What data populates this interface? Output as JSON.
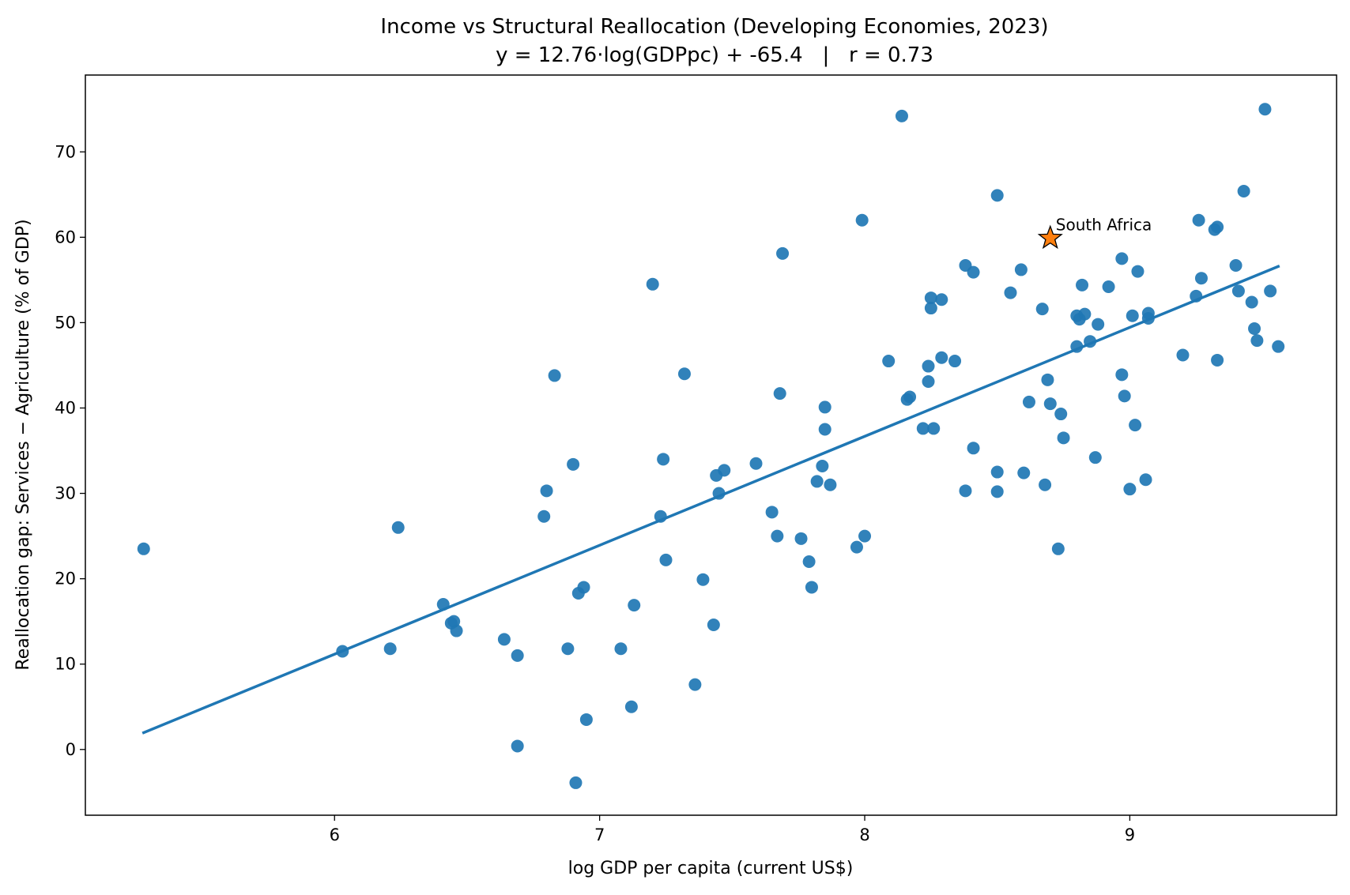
{
  "chart_data": {
    "type": "scatter",
    "title": "Income vs Structural Reallocation (Developing Economies, 2023)",
    "subtitle": "y = 12.76·log(GDPpc) + -65.4   |   r = 0.73",
    "xlabel": "log GDP per capita (current US$)",
    "ylabel": "Reallocation gap: Services − Agriculture (% of GDP)",
    "xlim": [
      5.06,
      9.78
    ],
    "ylim": [
      -7.7,
      79.0
    ],
    "xticks": [
      "6",
      "7",
      "8",
      "9"
    ],
    "yticks": [
      "0",
      "10",
      "20",
      "30",
      "40",
      "50",
      "60",
      "70"
    ],
    "grid": false,
    "legend": "none",
    "colors": {
      "points": "#1f77b4",
      "highlight": "#ff7f0e",
      "fit": "#1f77b4"
    },
    "fit_line": {
      "slope": 12.76,
      "intercept": -65.4,
      "x_range": [
        5.28,
        9.56
      ]
    },
    "highlight": {
      "label": "South Africa",
      "x": 8.7,
      "y": 59.9
    },
    "points": [
      [
        5.28,
        23.5
      ],
      [
        6.03,
        11.5
      ],
      [
        6.21,
        11.8
      ],
      [
        6.24,
        26.0
      ],
      [
        6.41,
        17.0
      ],
      [
        6.44,
        14.8
      ],
      [
        6.45,
        15.0
      ],
      [
        6.46,
        13.9
      ],
      [
        6.64,
        12.9
      ],
      [
        6.69,
        11.0
      ],
      [
        6.69,
        0.4
      ],
      [
        6.79,
        27.3
      ],
      [
        6.8,
        30.3
      ],
      [
        6.83,
        43.8
      ],
      [
        6.88,
        11.8
      ],
      [
        6.9,
        33.4
      ],
      [
        6.91,
        -3.9
      ],
      [
        6.92,
        18.3
      ],
      [
        6.94,
        19.0
      ],
      [
        6.95,
        3.5
      ],
      [
        7.08,
        11.8
      ],
      [
        7.12,
        5.0
      ],
      [
        7.13,
        16.9
      ],
      [
        7.2,
        54.5
      ],
      [
        7.23,
        27.3
      ],
      [
        7.24,
        34.0
      ],
      [
        7.25,
        22.2
      ],
      [
        7.32,
        44.0
      ],
      [
        7.36,
        7.6
      ],
      [
        7.39,
        19.9
      ],
      [
        7.43,
        14.6
      ],
      [
        7.44,
        32.1
      ],
      [
        7.45,
        30.0
      ],
      [
        7.47,
        32.7
      ],
      [
        7.59,
        33.5
      ],
      [
        7.65,
        27.8
      ],
      [
        7.67,
        25.0
      ],
      [
        7.68,
        41.7
      ],
      [
        7.69,
        58.1
      ],
      [
        7.76,
        24.7
      ],
      [
        7.79,
        22.0
      ],
      [
        7.8,
        19.0
      ],
      [
        7.82,
        31.4
      ],
      [
        7.84,
        33.2
      ],
      [
        7.85,
        40.1
      ],
      [
        7.85,
        37.5
      ],
      [
        7.87,
        31.0
      ],
      [
        7.97,
        23.7
      ],
      [
        7.99,
        62.0
      ],
      [
        8.0,
        25.0
      ],
      [
        8.09,
        45.5
      ],
      [
        8.14,
        74.2
      ],
      [
        8.16,
        41.0
      ],
      [
        8.17,
        41.3
      ],
      [
        8.22,
        37.6
      ],
      [
        8.24,
        44.9
      ],
      [
        8.24,
        43.1
      ],
      [
        8.25,
        51.7
      ],
      [
        8.25,
        52.9
      ],
      [
        8.26,
        37.6
      ],
      [
        8.29,
        52.7
      ],
      [
        8.29,
        45.9
      ],
      [
        8.34,
        45.5
      ],
      [
        8.38,
        30.3
      ],
      [
        8.38,
        56.7
      ],
      [
        8.41,
        55.9
      ],
      [
        8.41,
        35.3
      ],
      [
        8.5,
        64.9
      ],
      [
        8.5,
        32.5
      ],
      [
        8.5,
        30.2
      ],
      [
        8.55,
        53.5
      ],
      [
        8.59,
        56.2
      ],
      [
        8.6,
        32.4
      ],
      [
        8.62,
        40.7
      ],
      [
        8.67,
        51.6
      ],
      [
        8.68,
        31.0
      ],
      [
        8.69,
        43.3
      ],
      [
        8.7,
        40.5
      ],
      [
        8.73,
        23.5
      ],
      [
        8.74,
        39.3
      ],
      [
        8.75,
        36.5
      ],
      [
        8.8,
        47.2
      ],
      [
        8.8,
        50.8
      ],
      [
        8.81,
        50.4
      ],
      [
        8.82,
        54.4
      ],
      [
        8.83,
        51.0
      ],
      [
        8.85,
        47.8
      ],
      [
        8.87,
        34.2
      ],
      [
        8.88,
        49.8
      ],
      [
        8.92,
        54.2
      ],
      [
        8.97,
        57.5
      ],
      [
        8.97,
        43.9
      ],
      [
        8.98,
        41.4
      ],
      [
        9.0,
        30.5
      ],
      [
        9.01,
        50.8
      ],
      [
        9.02,
        38.0
      ],
      [
        9.03,
        56.0
      ],
      [
        9.06,
        31.6
      ],
      [
        9.07,
        50.5
      ],
      [
        9.07,
        51.1
      ],
      [
        9.2,
        46.2
      ],
      [
        9.25,
        53.1
      ],
      [
        9.26,
        62.0
      ],
      [
        9.27,
        55.2
      ],
      [
        9.32,
        60.9
      ],
      [
        9.33,
        61.2
      ],
      [
        9.33,
        45.6
      ],
      [
        9.4,
        56.7
      ],
      [
        9.41,
        53.7
      ],
      [
        9.43,
        65.4
      ],
      [
        9.46,
        52.4
      ],
      [
        9.47,
        49.3
      ],
      [
        9.48,
        47.9
      ],
      [
        9.51,
        75.0
      ],
      [
        9.53,
        53.7
      ],
      [
        9.56,
        47.2
      ]
    ]
  }
}
